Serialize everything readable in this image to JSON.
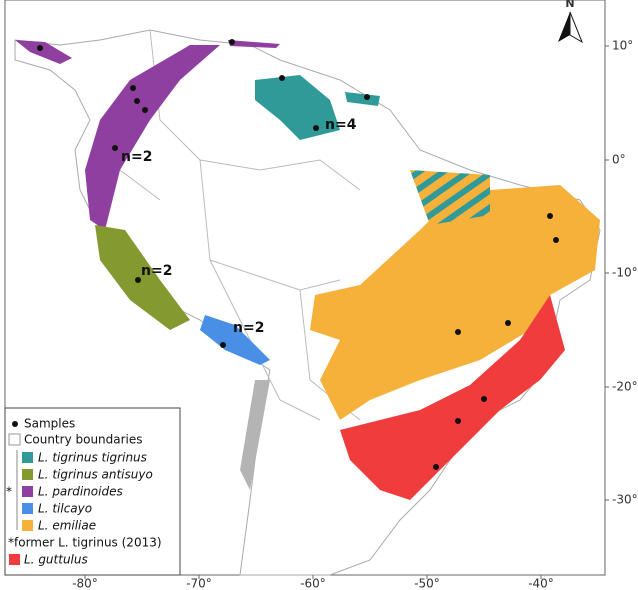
{
  "map": {
    "north_label": "N",
    "x_axis_labels": [
      "-80°",
      "-70°",
      "-60°",
      "-50°",
      "-40°"
    ],
    "y_axis_labels": [
      "10°",
      "0°",
      "-10°",
      "-20°",
      "-30°"
    ],
    "annotations": [
      "n=2",
      "n=2",
      "n=2",
      "n=4"
    ],
    "legend": {
      "samples": "Samples",
      "boundaries": "Country boundaries",
      "items": [
        "L. tigrinus tigrinus",
        "L. tigrinus antisuyo",
        "L. pardinoides",
        "L. tilcayo",
        "L. emiliae"
      ],
      "asterisk": "*",
      "note": "*former L. tigrinus (2013)",
      "guttulus": "L. guttulus"
    }
  }
}
